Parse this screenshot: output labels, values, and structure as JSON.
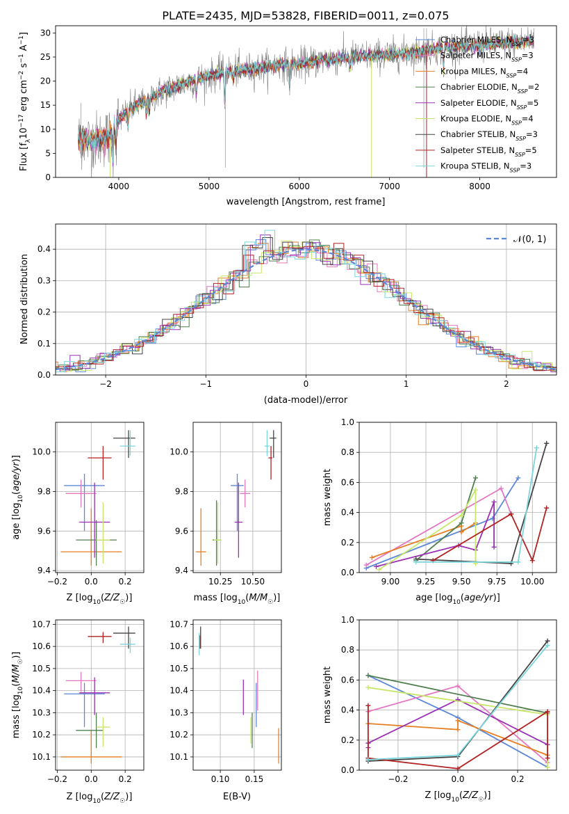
{
  "chart_data": [
    {
      "id": "spectrum",
      "type": "line",
      "title": "PLATE=2435, MJD=53828, FIBERID=0011, z=0.075",
      "xlabel": "wavelength [Angstrom, rest frame]",
      "ylabel": "Flux [f_λ 10^-17 erg cm^-2 s^-1 A^-1]",
      "xlim": [
        3300,
        8850
      ],
      "ylim": [
        0,
        31.5
      ],
      "xticks": [
        4000,
        5000,
        6000,
        7000,
        8000
      ],
      "yticks": [
        0,
        5,
        10,
        15,
        20,
        25,
        30
      ],
      "grid": false,
      "legend_position": "right",
      "continuum": [
        [
          3550,
          8.0
        ],
        [
          3700,
          7.5
        ],
        [
          3900,
          8.5
        ],
        [
          4000,
          12.0
        ],
        [
          4150,
          14.5
        ],
        [
          4300,
          16.0
        ],
        [
          4500,
          18.0
        ],
        [
          4800,
          20.0
        ],
        [
          5000,
          21.0
        ],
        [
          5200,
          22.0
        ],
        [
          5500,
          22.5
        ],
        [
          5800,
          23.5
        ],
        [
          6000,
          23.5
        ],
        [
          6300,
          24.5
        ],
        [
          6600,
          25.0
        ],
        [
          7000,
          25.5
        ],
        [
          7300,
          26.0
        ],
        [
          7600,
          27.0
        ],
        [
          8000,
          27.5
        ],
        [
          8400,
          28.0
        ],
        [
          8600,
          28.5
        ]
      ],
      "series": [
        {
          "name": "Chabrier MILES, N_SSP=3",
          "color": "#5b87d6"
        },
        {
          "name": "Salpeter MILES, N_SSP=3",
          "color": "#e377c2"
        },
        {
          "name": "Kroupa MILES, N_SSP=4",
          "color": "#e67e22"
        },
        {
          "name": "Chabrier ELODIE, N_SSP=2",
          "color": "#4f7f4f"
        },
        {
          "name": "Salpeter ELODIE, N_SSP=5",
          "color": "#9b30b5"
        },
        {
          "name": "Kroupa ELODIE, N_SSP=4",
          "color": "#c8e66a"
        },
        {
          "name": "Chabrier STELIB, N_SSP=3",
          "color": "#444444"
        },
        {
          "name": "Salpeter STELIB, N_SSP=5",
          "color": "#b22222"
        },
        {
          "name": "Kroupa STELIB, N_SSP=3",
          "color": "#7ad6dc"
        }
      ]
    },
    {
      "id": "residuals",
      "type": "line",
      "xlabel": "(data-model)/error",
      "ylabel": "Normed distribution",
      "xlim": [
        -2.5,
        2.5
      ],
      "ylim": [
        0,
        0.48
      ],
      "xticks": [
        -2,
        -1,
        0,
        1,
        2
      ],
      "yticks": [
        0.0,
        0.1,
        0.2,
        0.3,
        0.4
      ],
      "grid": true,
      "legend": "𝒩(0, 1)",
      "legend_position": "top-right",
      "normal_curve": {
        "mean": 0,
        "sd": 1,
        "color": "#5b87d6"
      }
    },
    {
      "id": "age_vs_Z",
      "type": "scatter",
      "xlabel": "Z [log10(Z/Z☉)]",
      "ylabel": "age [log10(age/yr)]",
      "xlim": [
        -0.21,
        0.31
      ],
      "ylim": [
        9.39,
        10.15
      ],
      "xticks": [
        -0.2,
        0.0,
        0.2
      ],
      "yticks": [
        9.4,
        9.6,
        9.8,
        10.0
      ],
      "grid": true,
      "points": [
        {
          "x": -0.04,
          "y": 9.83,
          "xerr": [
            0.12,
            0.12
          ],
          "yerr": [
            0.23,
            0.06
          ],
          "color": "#5b87d6"
        },
        {
          "x": -0.06,
          "y": 9.79,
          "xerr": [
            0.09,
            0.09
          ],
          "yerr": [
            0.07,
            0.07
          ],
          "color": "#e377c2"
        },
        {
          "x": 0.0,
          "y": 9.495,
          "xerr": [
            0.18,
            0.18
          ],
          "yerr": [
            0.07,
            0.22
          ],
          "color": "#e67e22"
        },
        {
          "x": 0.03,
          "y": 9.555,
          "xerr": [
            0.12,
            0.12
          ],
          "yerr": [
            0.13,
            0.1
          ],
          "color": "#4f7f4f"
        },
        {
          "x": 0.02,
          "y": 9.645,
          "xerr": [
            0.09,
            0.09
          ],
          "yerr": [
            0.18,
            0.2
          ],
          "color": "#9b30b5"
        },
        {
          "x": 0.07,
          "y": 9.555,
          "xerr": [
            0.04,
            0.04
          ],
          "yerr": [
            0.12,
            0.19
          ],
          "color": "#c8e66a"
        },
        {
          "x": 0.22,
          "y": 10.07,
          "xerr": [
            0.09,
            0.04
          ],
          "yerr": [
            0.1,
            0.04
          ],
          "color": "#444444"
        },
        {
          "x": 0.07,
          "y": 9.97,
          "xerr": [
            0.09,
            0.05
          ],
          "yerr": [
            0.11,
            0.06
          ],
          "color": "#b22222"
        },
        {
          "x": 0.23,
          "y": 10.03,
          "xerr": [
            0.06,
            0.03
          ],
          "yerr": [
            0.05,
            0.08
          ],
          "color": "#7ad6dc"
        }
      ]
    },
    {
      "id": "age_vs_mass",
      "type": "scatter",
      "xlabel": "mass [log10(M/M☉)]",
      "ylabel": "",
      "xlim": [
        10.04,
        10.72
      ],
      "ylim": [
        9.39,
        10.15
      ],
      "xticks": [
        10.25,
        10.5
      ],
      "yticks": [
        9.4,
        9.6,
        9.8,
        10.0
      ],
      "grid": true,
      "points": [
        {
          "x": 10.38,
          "y": 9.83,
          "xerr": [
            0.05,
            0.05
          ],
          "yerr": [
            0.23,
            0.06
          ],
          "color": "#5b87d6"
        },
        {
          "x": 10.44,
          "y": 9.79,
          "xerr": [
            0.04,
            0.04
          ],
          "yerr": [
            0.07,
            0.07
          ],
          "color": "#e377c2"
        },
        {
          "x": 10.1,
          "y": 9.495,
          "xerr": [
            0.04,
            0.04
          ],
          "yerr": [
            0.07,
            0.22
          ],
          "color": "#e67e22"
        },
        {
          "x": 10.22,
          "y": 9.555,
          "xerr": [
            0.03,
            0.03
          ],
          "yerr": [
            0.13,
            0.2
          ],
          "color": "#4f7f4f"
        },
        {
          "x": 10.39,
          "y": 9.645,
          "xerr": [
            0.03,
            0.03
          ],
          "yerr": [
            0.18,
            0.2
          ],
          "color": "#9b30b5"
        },
        {
          "x": 10.23,
          "y": 9.555,
          "xerr": [
            0.03,
            0.03
          ],
          "yerr": [
            0.12,
            0.19
          ],
          "color": "#c8e66a"
        },
        {
          "x": 10.66,
          "y": 10.07,
          "xerr": [
            0.03,
            0.02
          ],
          "yerr": [
            0.1,
            0.04
          ],
          "color": "#444444"
        },
        {
          "x": 10.64,
          "y": 9.97,
          "xerr": [
            0.02,
            0.01
          ],
          "yerr": [
            0.11,
            0.06
          ],
          "color": "#b22222"
        },
        {
          "x": 10.61,
          "y": 10.03,
          "xerr": [
            0.02,
            0.02
          ],
          "yerr": [
            0.05,
            0.08
          ],
          "color": "#7ad6dc"
        }
      ]
    },
    {
      "id": "weight_vs_age",
      "type": "line",
      "xlabel": "age [log10(age/yr)]",
      "ylabel": "mass weight",
      "xlim": [
        8.78,
        10.17
      ],
      "ylim": [
        0,
        1.0
      ],
      "xticks": [
        9.0,
        9.25,
        9.5,
        9.75,
        10.0
      ],
      "yticks": [
        0.0,
        0.2,
        0.4,
        0.6,
        0.8,
        1.0
      ],
      "grid": true,
      "series": [
        {
          "color": "#5b87d6",
          "points": [
            [
              8.83,
              0.03
            ],
            [
              9.72,
              0.36
            ],
            [
              9.9,
              0.63
            ]
          ]
        },
        {
          "color": "#e377c2",
          "points": [
            [
              8.83,
              0.05
            ],
            [
              9.78,
              0.56
            ],
            [
              9.85,
              0.39
            ]
          ]
        },
        {
          "color": "#e67e22",
          "points": [
            [
              8.87,
              0.1
            ],
            [
              9.5,
              0.31
            ],
            [
              9.5,
              0.27
            ],
            [
              9.6,
              0.33
            ]
          ]
        },
        {
          "color": "#4f7f4f",
          "points": [
            [
              9.18,
              0.08
            ],
            [
              9.5,
              0.33
            ],
            [
              9.6,
              0.63
            ]
          ]
        },
        {
          "color": "#9b30b5",
          "points": [
            [
              8.9,
              0.04
            ],
            [
              9.48,
              0.18
            ],
            [
              9.6,
              0.15
            ],
            [
              9.73,
              0.47
            ],
            [
              9.73,
              0.17
            ]
          ]
        },
        {
          "color": "#c8e66a",
          "points": [
            [
              8.92,
              0.02
            ],
            [
              9.5,
              0.38
            ],
            [
              9.6,
              0.55
            ],
            [
              9.6,
              0.06
            ]
          ]
        },
        {
          "color": "#444444",
          "points": [
            [
              9.18,
              0.09
            ],
            [
              9.85,
              0.06
            ],
            [
              10.1,
              0.86
            ]
          ]
        },
        {
          "color": "#b22222",
          "points": [
            [
              9.3,
              0.08
            ],
            [
              9.85,
              0.39
            ],
            [
              10.0,
              0.08
            ],
            [
              10.1,
              0.43
            ]
          ]
        },
        {
          "color": "#7ad6dc",
          "points": [
            [
              9.18,
              0.07
            ],
            [
              9.9,
              0.07
            ],
            [
              10.03,
              0.83
            ]
          ]
        }
      ]
    },
    {
      "id": "mass_vs_Z",
      "type": "scatter",
      "xlabel": "Z [log10(Z/Z☉)]",
      "ylabel": "mass [log10(M/M☉)]",
      "xlim": [
        -0.21,
        0.31
      ],
      "ylim": [
        10.04,
        10.72
      ],
      "xticks": [
        -0.2,
        0.0,
        0.2
      ],
      "yticks": [
        10.1,
        10.2,
        10.3,
        10.4,
        10.5,
        10.6,
        10.7
      ],
      "grid": true,
      "points": [
        {
          "x": -0.04,
          "y": 10.385,
          "xerr": [
            0.12,
            0.12
          ],
          "yerr": [
            0.15,
            0.05
          ],
          "color": "#5b87d6"
        },
        {
          "x": -0.06,
          "y": 10.445,
          "xerr": [
            0.09,
            0.09
          ],
          "yerr": [
            0.05,
            0.04
          ],
          "color": "#e377c2"
        },
        {
          "x": 0.0,
          "y": 10.1,
          "xerr": [
            0.18,
            0.18
          ],
          "yerr": [
            0.03,
            0.12
          ],
          "color": "#e67e22"
        },
        {
          "x": 0.03,
          "y": 10.22,
          "xerr": [
            0.12,
            0.04
          ],
          "yerr": [
            0.08,
            0.08
          ],
          "color": "#4f7f4f"
        },
        {
          "x": 0.02,
          "y": 10.39,
          "xerr": [
            0.09,
            0.09
          ],
          "yerr": [
            0.1,
            0.07
          ],
          "color": "#9b30b5"
        },
        {
          "x": 0.07,
          "y": 10.235,
          "xerr": [
            0.04,
            0.04
          ],
          "yerr": [
            0.09,
            0.045
          ],
          "color": "#c8e66a"
        },
        {
          "x": 0.22,
          "y": 10.66,
          "xerr": [
            0.09,
            0.04
          ],
          "yerr": [
            0.07,
            0.03
          ],
          "color": "#444444"
        },
        {
          "x": 0.07,
          "y": 10.645,
          "xerr": [
            0.09,
            0.05
          ],
          "yerr": [
            0.03,
            0.02
          ],
          "color": "#b22222"
        },
        {
          "x": 0.23,
          "y": 10.61,
          "xerr": [
            0.06,
            0.03
          ],
          "yerr": [
            0.04,
            0.03
          ],
          "color": "#7ad6dc"
        }
      ]
    },
    {
      "id": "mass_vs_ebv",
      "type": "scatter",
      "xlabel": "E(B-V)",
      "ylabel": "",
      "xlim": [
        0.06,
        0.19
      ],
      "ylim": [
        10.04,
        10.72
      ],
      "xticks": [
        0.1,
        0.15
      ],
      "yticks": [
        10.1,
        10.2,
        10.3,
        10.4,
        10.5,
        10.6,
        10.7
      ],
      "grid": true,
      "points": [
        {
          "x": 0.153,
          "y": 10.385,
          "xerr": [
            0,
            0
          ],
          "yerr": [
            0.15,
            0.05
          ],
          "color": "#5b87d6"
        },
        {
          "x": 0.155,
          "y": 10.4,
          "xerr": [
            0,
            0
          ],
          "yerr": [
            0.09,
            0.09
          ],
          "color": "#e377c2"
        },
        {
          "x": 0.186,
          "y": 10.15,
          "xerr": [
            0,
            0
          ],
          "yerr": [
            0.08,
            0.08
          ],
          "color": "#e67e22"
        },
        {
          "x": 0.147,
          "y": 10.22,
          "xerr": [
            0,
            0
          ],
          "yerr": [
            0.08,
            0.08
          ],
          "color": "#4f7f4f"
        },
        {
          "x": 0.134,
          "y": 10.37,
          "xerr": [
            0,
            0
          ],
          "yerr": [
            0.08,
            0.08
          ],
          "color": "#9b30b5"
        },
        {
          "x": 0.145,
          "y": 10.22,
          "xerr": [
            0,
            0
          ],
          "yerr": [
            0.06,
            0.06
          ],
          "color": "#c8e66a"
        },
        {
          "x": 0.071,
          "y": 10.64,
          "xerr": [
            0,
            0
          ],
          "yerr": [
            0.05,
            0.05
          ],
          "color": "#444444"
        },
        {
          "x": 0.07,
          "y": 10.62,
          "xerr": [
            0,
            0
          ],
          "yerr": [
            0.03,
            0.03
          ],
          "color": "#b22222"
        },
        {
          "x": 0.069,
          "y": 10.61,
          "xerr": [
            0,
            0
          ],
          "yerr": [
            0.05,
            0.05
          ],
          "color": "#7ad6dc"
        }
      ]
    },
    {
      "id": "weight_vs_Z",
      "type": "line",
      "xlabel": "Z [log10(Z/Z☉)]",
      "ylabel": "mass weight",
      "xlim": [
        -0.33,
        0.33
      ],
      "ylim": [
        0,
        1.0
      ],
      "xticks": [
        -0.2,
        0.0,
        0.2
      ],
      "yticks": [
        0.0,
        0.2,
        0.4,
        0.6,
        0.8,
        1.0
      ],
      "grid": true,
      "series": [
        {
          "color": "#5b87d6",
          "points": [
            [
              -0.3,
              0.63
            ],
            [
              0.0,
              0.35
            ],
            [
              0.3,
              0.02
            ]
          ]
        },
        {
          "color": "#e377c2",
          "points": [
            [
              -0.3,
              0.39
            ],
            [
              0.0,
              0.56
            ],
            [
              0.3,
              0.05
            ]
          ]
        },
        {
          "color": "#e67e22",
          "points": [
            [
              -0.3,
              0.31
            ],
            [
              0.0,
              0.27
            ],
            [
              0.0,
              0.33
            ],
            [
              0.3,
              0.1
            ]
          ]
        },
        {
          "color": "#4f7f4f",
          "points": [
            [
              -0.3,
              0.63
            ],
            [
              0.3,
              0.38
            ]
          ]
        },
        {
          "color": "#9b30b5",
          "points": [
            [
              -0.3,
              0.15
            ],
            [
              -0.3,
              0.18
            ],
            [
              0.0,
              0.47
            ],
            [
              0.3,
              0.17
            ]
          ]
        },
        {
          "color": "#c8e66a",
          "points": [
            [
              -0.3,
              0.55
            ],
            [
              0.3,
              0.37
            ],
            [
              0.3,
              0.02
            ]
          ]
        },
        {
          "color": "#444444",
          "points": [
            [
              -0.3,
              0.06
            ],
            [
              0.0,
              0.09
            ],
            [
              0.3,
              0.86
            ]
          ]
        },
        {
          "color": "#b22222",
          "points": [
            [
              -0.3,
              0.43
            ],
            [
              -0.3,
              0.08
            ],
            [
              0.0,
              0.01
            ],
            [
              0.3,
              0.39
            ],
            [
              0.3,
              0.08
            ]
          ]
        },
        {
          "color": "#7ad6dc",
          "points": [
            [
              -0.3,
              0.07
            ],
            [
              0.0,
              0.1
            ],
            [
              0.3,
              0.83
            ]
          ]
        }
      ]
    }
  ]
}
